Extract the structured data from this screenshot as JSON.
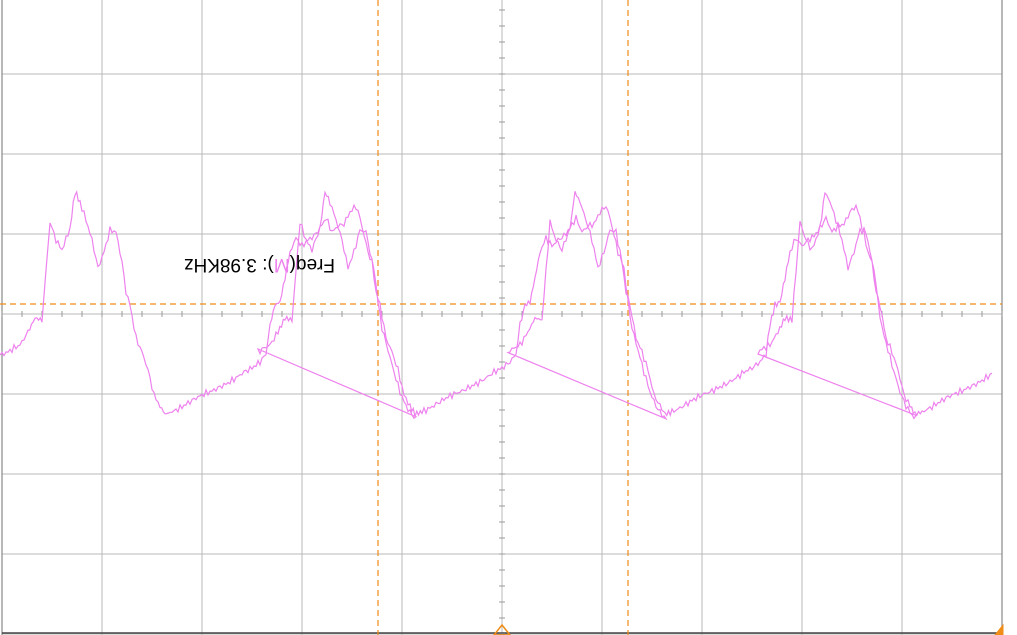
{
  "scope": {
    "background_color": "#ffffff",
    "grid_color": "#b8b8b8",
    "cursor_color": "#f08c18",
    "trace_color": "#ee82ee",
    "display_orientation": "rotated 180 degrees",
    "grid": {
      "vertical_divisions": 10,
      "horizontal_divisions": 8
    },
    "measurement": {
      "label": "Freq(",
      "channel": "M",
      "suffix": "):",
      "value": "3.98KHz"
    },
    "cursors": {
      "vertical_count": 2,
      "horizontal_count": 1,
      "style": "dashed"
    },
    "markers": {
      "trigger_position_icon": "triangle-marker-icon",
      "corner_icon": "triangle-marker-icon"
    },
    "waveform": {
      "shape": "sawtooth-like periodic signal",
      "visible_periods": 4,
      "channel": "M"
    }
  }
}
